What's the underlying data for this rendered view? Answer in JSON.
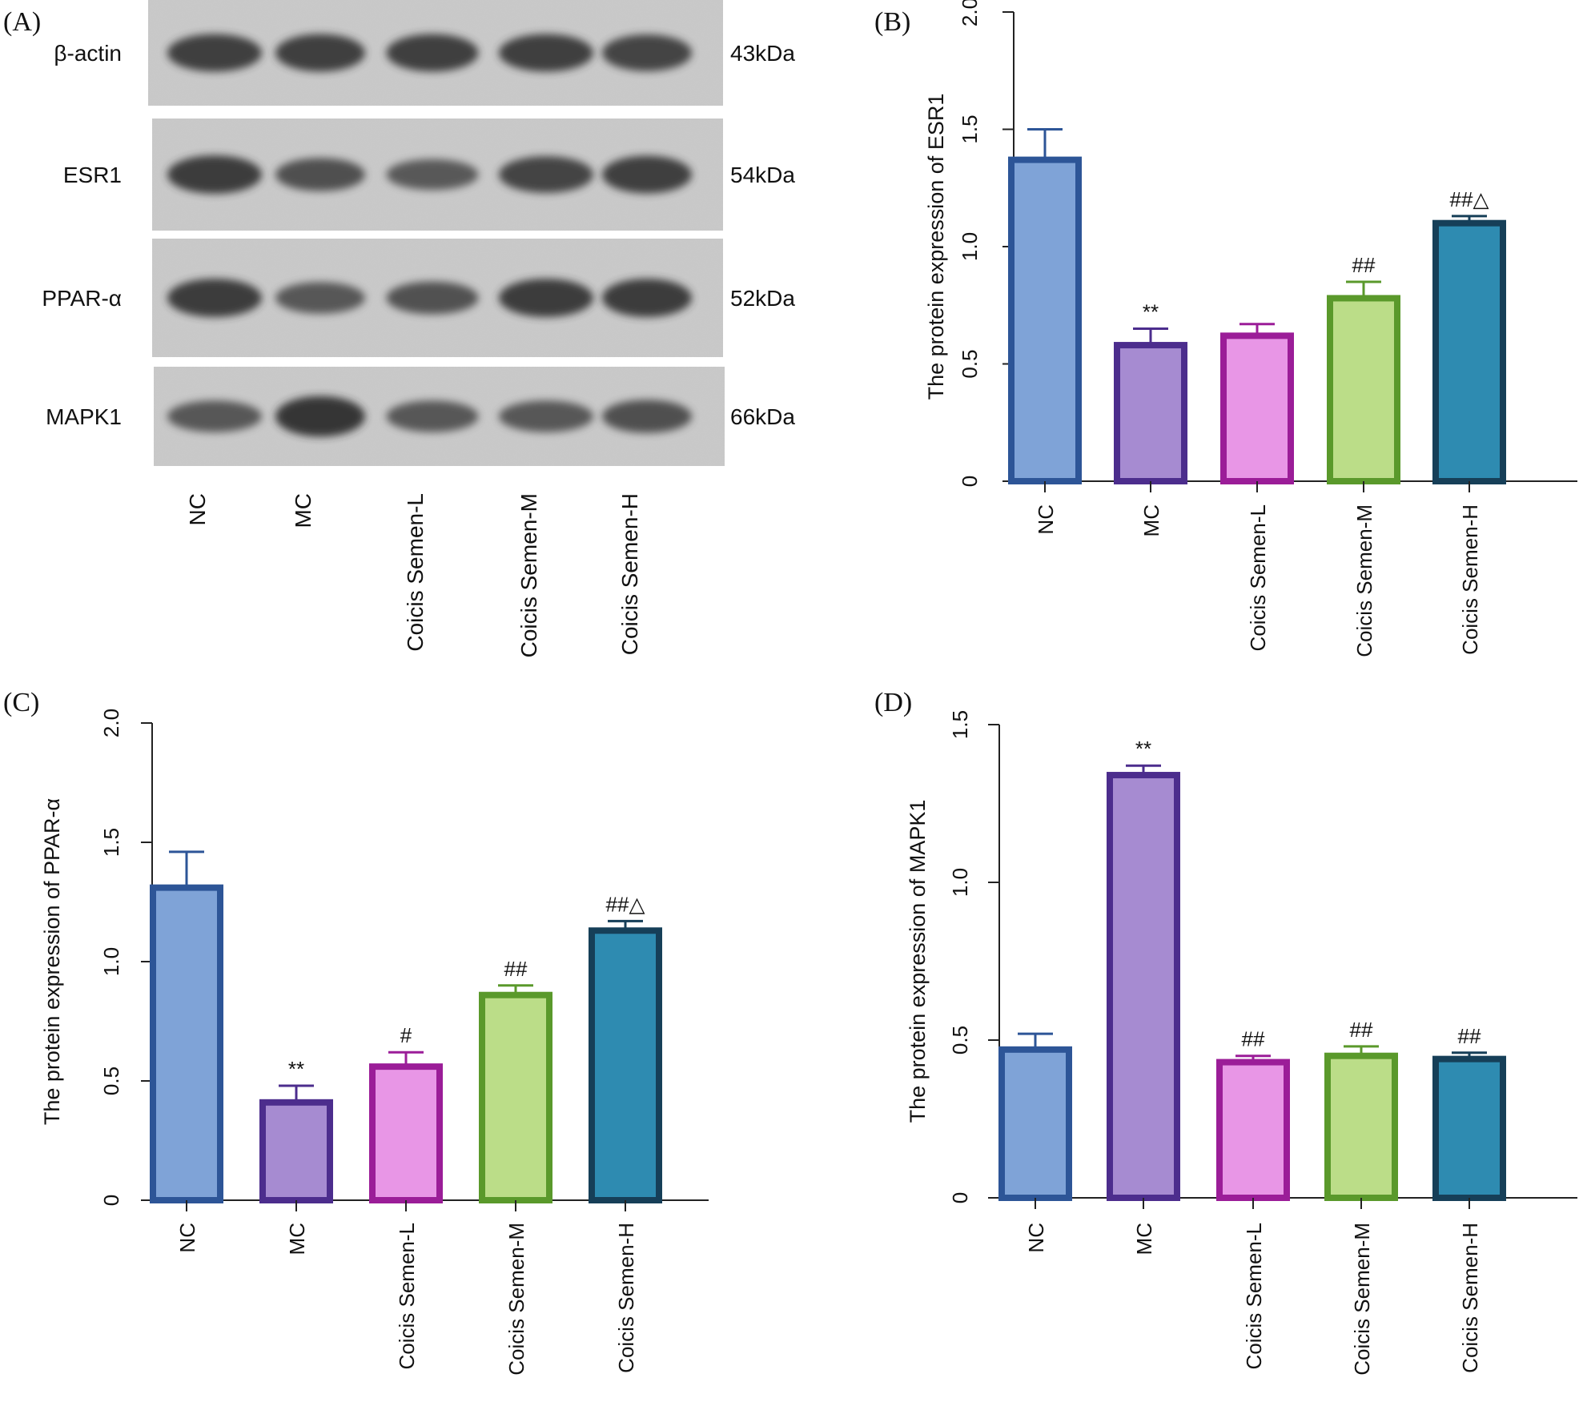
{
  "figure": {
    "panelA": {
      "letter": "(A)",
      "proteins": [
        {
          "name": "β-actin",
          "kda": "43kDa",
          "bands": [
            0.82,
            0.82,
            0.82,
            0.82,
            0.78
          ]
        },
        {
          "name": "ESR1",
          "kda": "54kDa",
          "bands": [
            0.85,
            0.62,
            0.52,
            0.78,
            0.82
          ]
        },
        {
          "name": "PPAR-α",
          "kda": "52kDa",
          "bands": [
            0.85,
            0.55,
            0.6,
            0.85,
            0.85
          ]
        },
        {
          "name": "MAPK1",
          "kda": "66kDa",
          "bands": [
            0.55,
            0.95,
            0.55,
            0.55,
            0.62
          ]
        }
      ],
      "lanes": [
        "NC",
        "MC",
        "Coicis Semen-L",
        "Coicis Semen-M",
        "Coicis Semen-H"
      ]
    }
  },
  "chart_data": [
    {
      "panel": "(B)",
      "type": "bar",
      "categories": [
        "NC",
        "MC",
        "Coicis Semen-L",
        "Coicis Semen-M",
        "Coicis Semen-H"
      ],
      "values": [
        1.37,
        0.58,
        0.62,
        0.78,
        1.1
      ],
      "errors": [
        0.13,
        0.07,
        0.05,
        0.07,
        0.03
      ],
      "annotations": [
        "",
        "**",
        "",
        "##",
        "##△"
      ],
      "ylabel": "The protein expression of ESR1",
      "ylim": [
        0,
        2.0
      ],
      "yticks": [
        "0",
        "0.5",
        "1.0",
        "1.5",
        "2.0"
      ],
      "fill_colors": [
        "#7fa3d7",
        "#a68bd1",
        "#e896e6",
        "#bbdd88",
        "#2e8bb1"
      ],
      "edge_colors": [
        "#2d5597",
        "#4c2d8d",
        "#9b1d98",
        "#5a992b",
        "#163f58"
      ]
    },
    {
      "panel": "(C)",
      "type": "bar",
      "categories": [
        "NC",
        "MC",
        "Coicis Semen-L",
        "Coicis Semen-M",
        "Coicis Semen-H"
      ],
      "values": [
        1.31,
        0.41,
        0.56,
        0.86,
        1.13
      ],
      "errors": [
        0.15,
        0.07,
        0.06,
        0.04,
        0.04
      ],
      "annotations": [
        "",
        "**",
        "#",
        "##",
        "##△"
      ],
      "ylabel": "The protein expression of PPAR-α",
      "ylim": [
        0,
        2.0
      ],
      "yticks": [
        "0",
        "0.5",
        "1.0",
        "1.5",
        "2.0"
      ],
      "fill_colors": [
        "#7fa3d7",
        "#a68bd1",
        "#e896e6",
        "#bbdd88",
        "#2e8bb1"
      ],
      "edge_colors": [
        "#2d5597",
        "#4c2d8d",
        "#9b1d98",
        "#5a992b",
        "#163f58"
      ]
    },
    {
      "panel": "(D)",
      "type": "bar",
      "categories": [
        "NC",
        "MC",
        "Coicis Semen-L",
        "Coicis Semen-M",
        "Coicis Semen-H"
      ],
      "values": [
        0.47,
        1.34,
        0.43,
        0.45,
        0.44
      ],
      "errors": [
        0.05,
        0.03,
        0.02,
        0.03,
        0.02
      ],
      "annotations": [
        "",
        "**",
        "##",
        "##",
        "##"
      ],
      "ylabel": "The protein expression of MAPK1",
      "ylim": [
        0,
        1.5
      ],
      "yticks": [
        "0",
        "0.5",
        "1.0",
        "1.5"
      ],
      "fill_colors": [
        "#7fa3d7",
        "#a68bd1",
        "#e896e6",
        "#bbdd88",
        "#2e8bb1"
      ],
      "edge_colors": [
        "#2d5597",
        "#4c2d8d",
        "#9b1d98",
        "#5a992b",
        "#163f58"
      ]
    }
  ]
}
